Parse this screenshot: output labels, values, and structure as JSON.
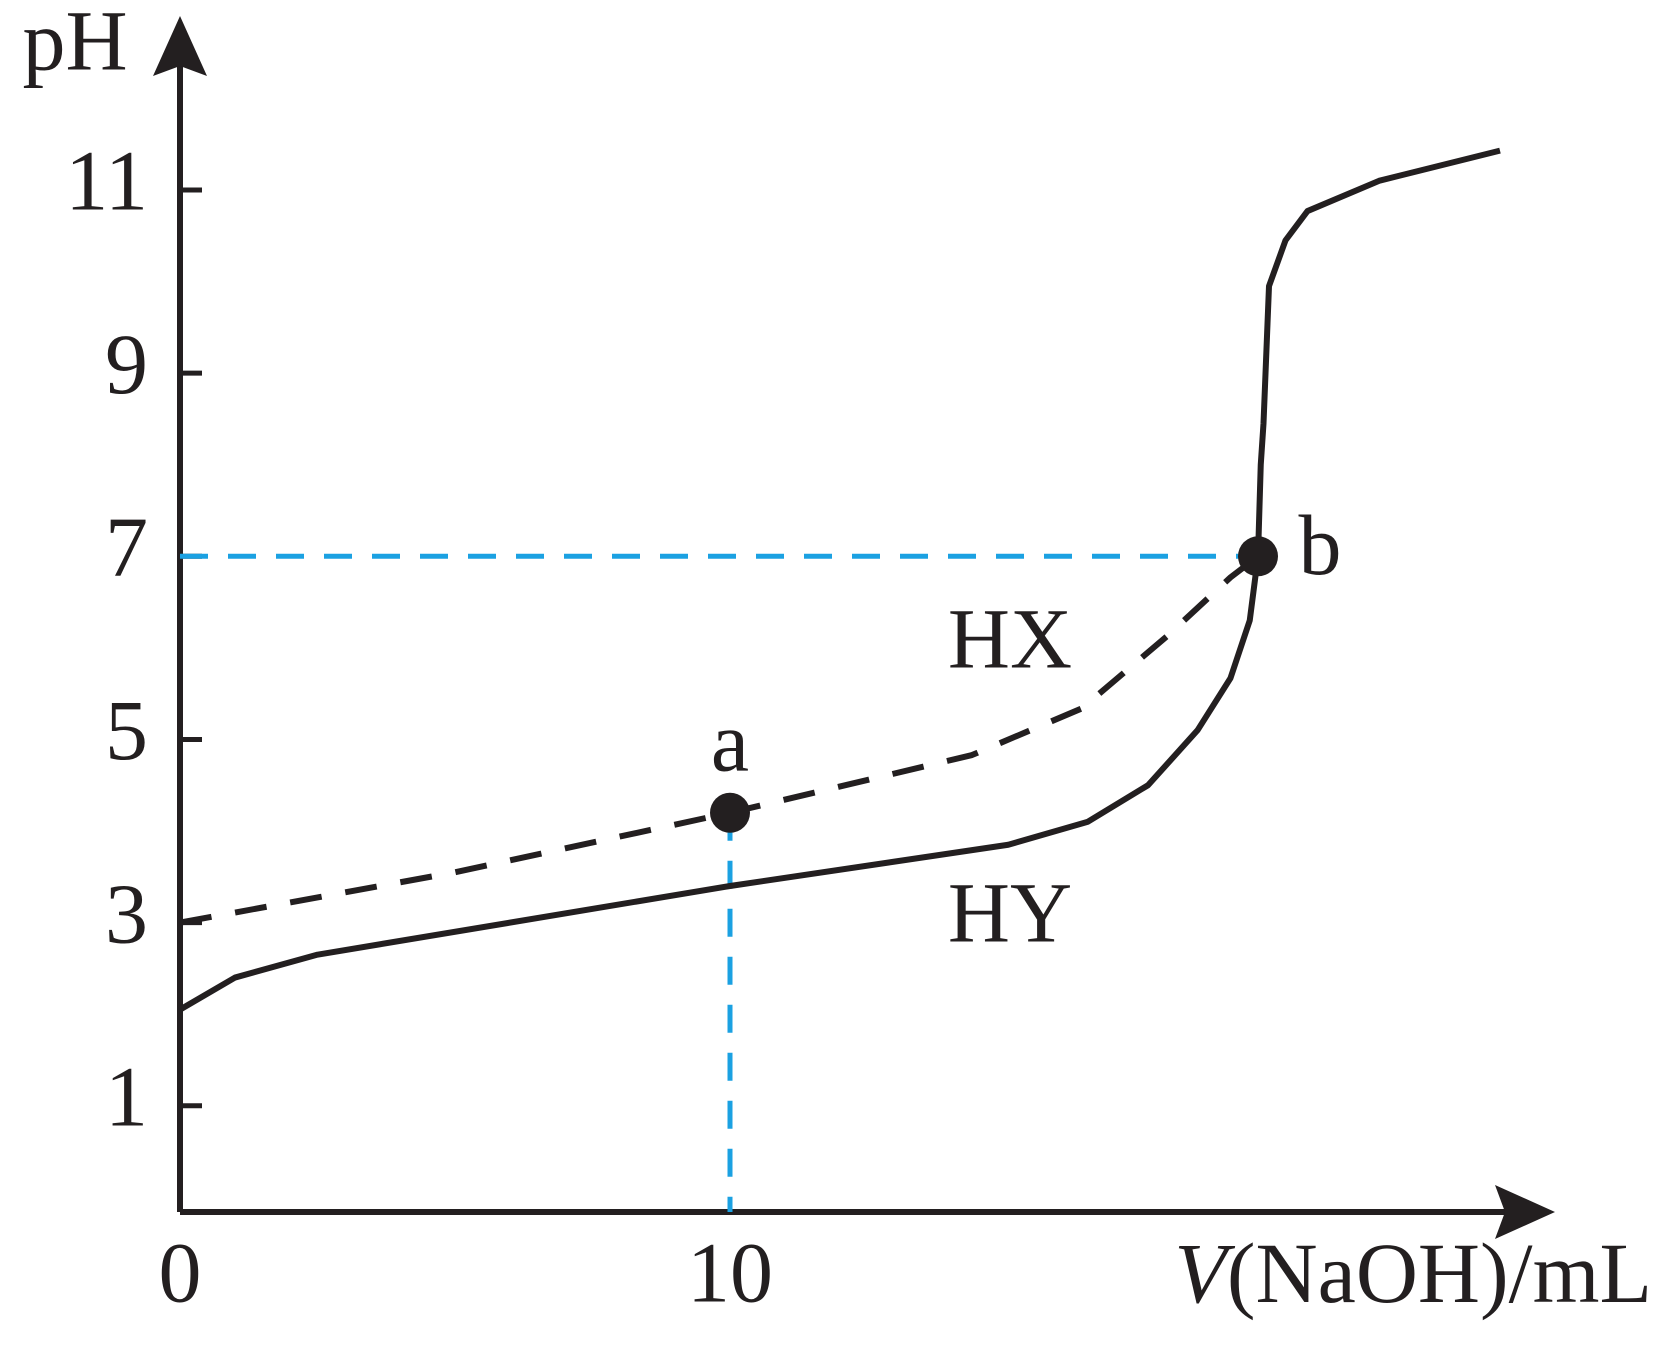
{
  "chart_data": {
    "type": "line",
    "xlabel": "V(NaOH)/mL",
    "ylabel": "pH",
    "xlim": [
      0,
      25
    ],
    "ylim": [
      -0.16,
      12.9
    ],
    "xticks": [
      0,
      10
    ],
    "yticks": [
      1,
      3,
      5,
      7,
      9,
      11
    ],
    "series": [
      {
        "name": "HX",
        "color": "#231f20",
        "style": "dashed",
        "x": [
          0,
          5,
          10,
          14.4,
          16.4,
          17.95,
          19.1,
          19.6
        ],
        "values": [
          3,
          3.55,
          4.2,
          4.83,
          5.34,
          6.13,
          6.77,
          7
        ]
      },
      {
        "name": "HY",
        "color": "#231f20",
        "style": "solid",
        "x": [
          0,
          1,
          2.5,
          10,
          15.06,
          16.5,
          17.6,
          18.5,
          19.1,
          19.45,
          19.6,
          19.65,
          19.7,
          19.8,
          20.1,
          20.5,
          21.8,
          24
        ],
        "values": [
          2.05,
          2.4,
          2.65,
          3.4,
          3.85,
          4.1,
          4.5,
          5.1,
          5.67,
          6.3,
          7,
          8,
          8.45,
          9.95,
          10.45,
          10.77,
          11.1,
          11.43
        ]
      }
    ],
    "points": [
      {
        "label": "a",
        "x": 10,
        "y": 4.2
      },
      {
        "label": "b",
        "x": 19.6,
        "y": 7
      }
    ],
    "guide_color": "#1ba1e2"
  }
}
